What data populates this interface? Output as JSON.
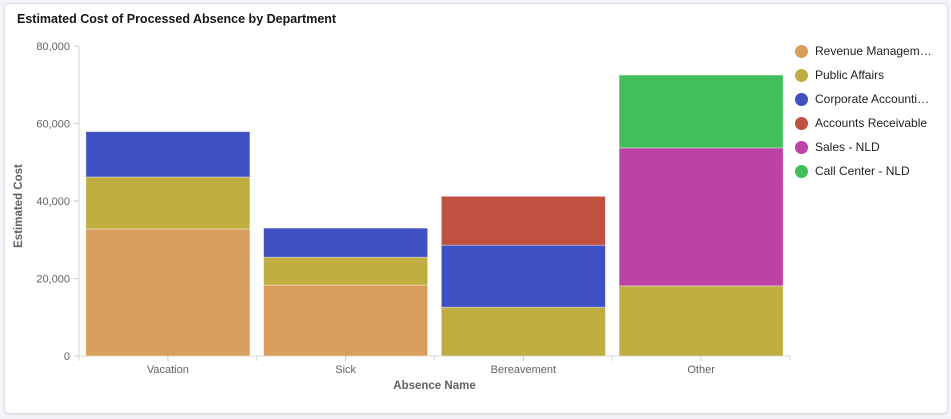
{
  "card": {
    "title": "Estimated Cost of Processed Absence by Department"
  },
  "chart_data": {
    "type": "bar",
    "stacked": true,
    "title": "Estimated Cost of Processed Absence by Department",
    "xlabel": "Absence Name",
    "ylabel": "Estimated Cost",
    "ylim": [
      0,
      80000
    ],
    "yticks": [
      "0",
      "20,000",
      "40,000",
      "60,000",
      "80,000"
    ],
    "ytick_values": [
      0,
      20000,
      40000,
      60000,
      80000
    ],
    "grid": false,
    "legend_position": "right",
    "categories": [
      "Vacation",
      "Sick",
      "Bereavement",
      "Other"
    ],
    "series": [
      {
        "name": "Revenue Managem…",
        "color": "#d99e5c",
        "values": [
          32800,
          18300,
          0,
          0
        ]
      },
      {
        "name": "Public Affairs",
        "color": "#bfad40",
        "values": [
          13400,
          7200,
          12600,
          18100
        ]
      },
      {
        "name": "Corporate Accounti…",
        "color": "#3f51c2",
        "values": [
          11700,
          7500,
          16000,
          0
        ]
      },
      {
        "name": "Accounts Receivable",
        "color": "#c05140",
        "values": [
          0,
          0,
          12600,
          0
        ]
      },
      {
        "name": "Sales - NLD",
        "color": "#bd42a6",
        "values": [
          0,
          0,
          0,
          35600
        ]
      },
      {
        "name": "Call Center - NLD",
        "color": "#41bf5a",
        "values": [
          0,
          0,
          0,
          18800
        ]
      }
    ]
  }
}
